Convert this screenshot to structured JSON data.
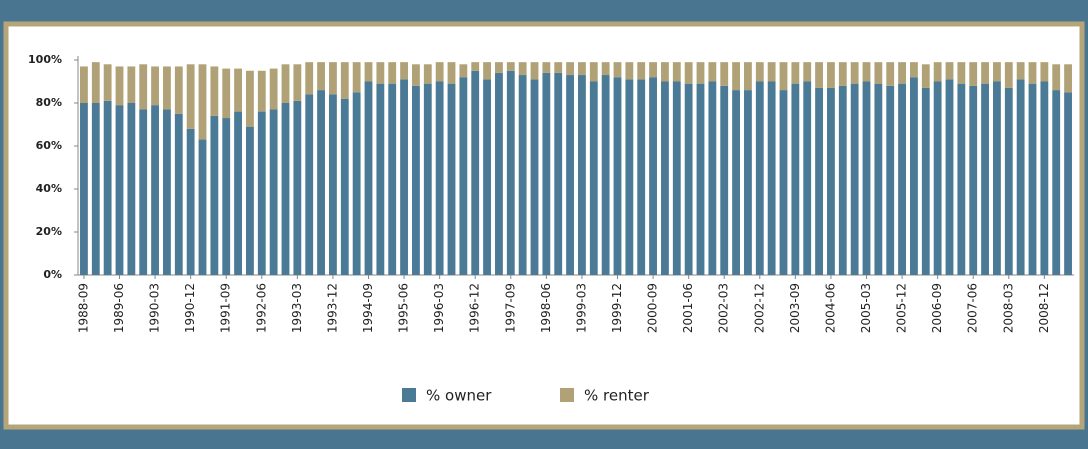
{
  "chart_data": {
    "type": "stacked_bar",
    "categories": [
      "1988-09",
      null,
      null,
      "1989-06",
      null,
      null,
      "1990-03",
      null,
      null,
      "1990-12",
      null,
      null,
      "1991-09",
      null,
      null,
      "1992-06",
      null,
      null,
      "1993-03",
      null,
      null,
      "1993-12",
      null,
      null,
      "1994-09",
      null,
      null,
      "1995-06",
      null,
      null,
      "1996-03",
      null,
      null,
      "1996-12",
      null,
      null,
      "1997-09",
      null,
      null,
      "1998-06",
      null,
      null,
      "1999-03",
      null,
      null,
      "1999-12",
      null,
      null,
      "2000-09",
      null,
      null,
      "2001-06",
      null,
      null,
      "2002-03",
      null,
      null,
      "2002-12",
      null,
      null,
      "2003-09",
      null,
      null,
      "2004-06",
      null,
      null,
      "2005-03",
      null,
      null,
      "2005-12",
      null,
      null,
      "2006-09",
      null,
      null,
      "2007-06",
      null,
      null,
      "2008-03",
      null,
      null,
      "2008-12",
      null,
      null
    ],
    "series": [
      {
        "name": "% owner",
        "color": "#4a7a96",
        "values": [
          80,
          80,
          81,
          79,
          80,
          77,
          79,
          77,
          75,
          68,
          63,
          74,
          73,
          76,
          69,
          76,
          77,
          80,
          81,
          84,
          86,
          84,
          82,
          85,
          90,
          89,
          89,
          91,
          88,
          89,
          90,
          89,
          92,
          95,
          91,
          94,
          95,
          93,
          91,
          94,
          94,
          93,
          93,
          90,
          93,
          92,
          91,
          91,
          92,
          90,
          90,
          89,
          89,
          90,
          88,
          86,
          86,
          90,
          90,
          86,
          89,
          90,
          87,
          87,
          88,
          89,
          90,
          89,
          88,
          89,
          92,
          87,
          90,
          91,
          89,
          88,
          89,
          90,
          87,
          91,
          89,
          90,
          86,
          85
        ]
      },
      {
        "name": "% renter",
        "color": "#b0a276",
        "values": [
          17,
          19,
          17,
          18,
          17,
          21,
          18,
          20,
          22,
          30,
          35,
          23,
          23,
          20,
          26,
          19,
          19,
          18,
          17,
          15,
          13,
          15,
          17,
          14,
          9,
          10,
          10,
          8,
          10,
          9,
          9,
          10,
          6,
          4,
          8,
          5,
          4,
          6,
          8,
          5,
          5,
          6,
          6,
          9,
          6,
          7,
          8,
          8,
          7,
          9,
          9,
          10,
          10,
          9,
          11,
          13,
          13,
          9,
          9,
          13,
          10,
          9,
          12,
          12,
          11,
          10,
          9,
          10,
          11,
          10,
          7,
          11,
          9,
          8,
          10,
          11,
          10,
          9,
          12,
          8,
          10,
          9,
          12,
          13
        ]
      }
    ],
    "ylim": [
      0,
      100
    ],
    "yticks": [
      {
        "value": 0,
        "label": "0%"
      },
      {
        "value": 20,
        "label": "20%"
      },
      {
        "value": 40,
        "label": "40%"
      },
      {
        "value": 60,
        "label": "60%"
      },
      {
        "value": 80,
        "label": "80%"
      },
      {
        "value": 100,
        "label": "100%"
      }
    ],
    "legend": "bottom"
  }
}
